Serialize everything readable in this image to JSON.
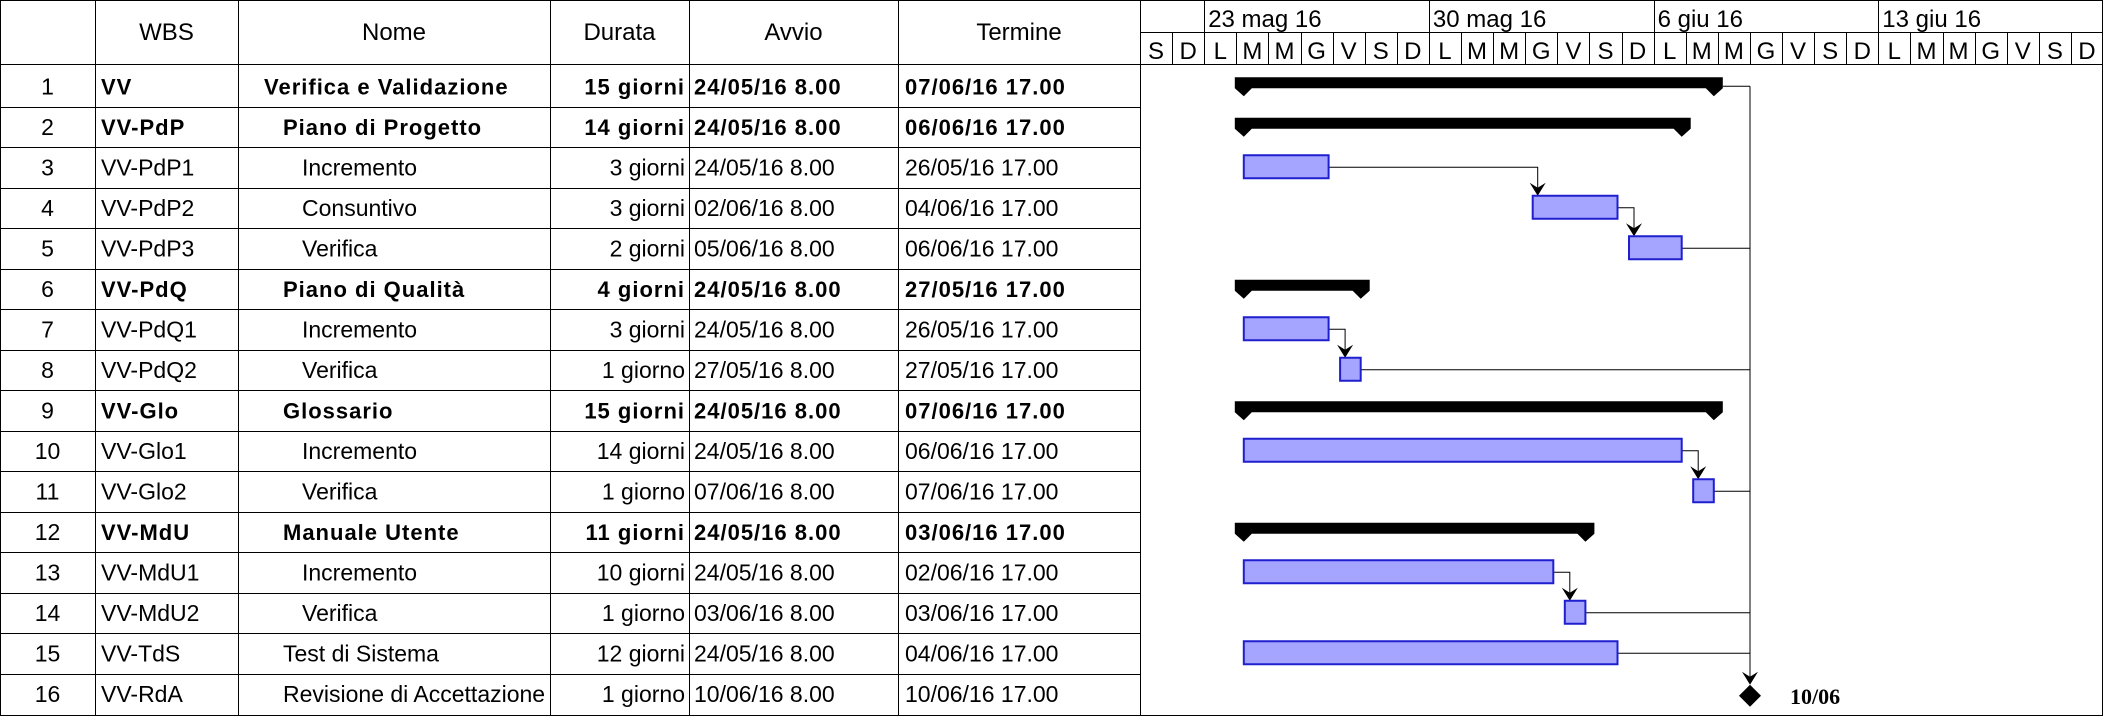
{
  "headers": {
    "wbs": "WBS",
    "name": "Nome",
    "duration": "Durata",
    "start": "Avvio",
    "end": "Termine"
  },
  "timescale": {
    "weeks": [
      "23 mag 16",
      "30 mag 16",
      "6 giu 16",
      "13 giu 16"
    ],
    "days": [
      "S",
      "D",
      "L",
      "M",
      "M",
      "G",
      "V",
      "S",
      "D",
      "L",
      "M",
      "M",
      "G",
      "V",
      "S",
      "D",
      "L",
      "M",
      "M",
      "G",
      "V",
      "S",
      "D",
      "L",
      "M",
      "M",
      "G",
      "V",
      "S",
      "D"
    ]
  },
  "rows": [
    {
      "id": "1",
      "wbs": "VV",
      "name": "Verifica e Validazione",
      "duration": "15 giorni",
      "start": "24/05/16 8.00",
      "end": "07/06/16 17.00",
      "summary": true,
      "level": 0
    },
    {
      "id": "2",
      "wbs": "VV-PdP",
      "name": "Piano di Progetto",
      "duration": "14 giorni",
      "start": "24/05/16 8.00",
      "end": "06/06/16 17.00",
      "summary": true,
      "level": 1
    },
    {
      "id": "3",
      "wbs": "VV-PdP1",
      "name": "Incremento",
      "duration": "3 giorni",
      "start": "24/05/16 8.00",
      "end": "26/05/16 17.00",
      "summary": false,
      "level": 2
    },
    {
      "id": "4",
      "wbs": "VV-PdP2",
      "name": "Consuntivo",
      "duration": "3 giorni",
      "start": "02/06/16 8.00",
      "end": "04/06/16 17.00",
      "summary": false,
      "level": 2
    },
    {
      "id": "5",
      "wbs": "VV-PdP3",
      "name": "Verifica",
      "duration": "2 giorni",
      "start": "05/06/16 8.00",
      "end": "06/06/16 17.00",
      "summary": false,
      "level": 2
    },
    {
      "id": "6",
      "wbs": "VV-PdQ",
      "name": "Piano di Qualità",
      "duration": "4 giorni",
      "start": "24/05/16 8.00",
      "end": "27/05/16 17.00",
      "summary": true,
      "level": 1
    },
    {
      "id": "7",
      "wbs": "VV-PdQ1",
      "name": "Incremento",
      "duration": "3 giorni",
      "start": "24/05/16 8.00",
      "end": "26/05/16 17.00",
      "summary": false,
      "level": 2
    },
    {
      "id": "8",
      "wbs": "VV-PdQ2",
      "name": "Verifica",
      "duration": "1 giorno",
      "start": "27/05/16 8.00",
      "end": "27/05/16 17.00",
      "summary": false,
      "level": 2
    },
    {
      "id": "9",
      "wbs": "VV-Glo",
      "name": "Glossario",
      "duration": "15 giorni",
      "start": "24/05/16 8.00",
      "end": "07/06/16 17.00",
      "summary": true,
      "level": 1
    },
    {
      "id": "10",
      "wbs": "VV-Glo1",
      "name": "Incremento",
      "duration": "14 giorni",
      "start": "24/05/16 8.00",
      "end": "06/06/16 17.00",
      "summary": false,
      "level": 2
    },
    {
      "id": "11",
      "wbs": "VV-Glo2",
      "name": "Verifica",
      "duration": "1 giorno",
      "start": "07/06/16 8.00",
      "end": "07/06/16 17.00",
      "summary": false,
      "level": 2
    },
    {
      "id": "12",
      "wbs": "VV-MdU",
      "name": "Manuale Utente",
      "duration": "11 giorni",
      "start": "24/05/16 8.00",
      "end": "03/06/16 17.00",
      "summary": true,
      "level": 1
    },
    {
      "id": "13",
      "wbs": "VV-MdU1",
      "name": "Incremento",
      "duration": "10 giorni",
      "start": "24/05/16 8.00",
      "end": "02/06/16 17.00",
      "summary": false,
      "level": 2
    },
    {
      "id": "14",
      "wbs": "VV-MdU2",
      "name": "Verifica",
      "duration": "1 giorno",
      "start": "03/06/16 8.00",
      "end": "03/06/16 17.00",
      "summary": false,
      "level": 2
    },
    {
      "id": "15",
      "wbs": "VV-TdS",
      "name": "Test di Sistema",
      "duration": "12 giorni",
      "start": "24/05/16 8.00",
      "end": "04/06/16 17.00",
      "summary": false,
      "level": 1
    },
    {
      "id": "16",
      "wbs": "VV-RdA",
      "name": "Revisione di Accettazione",
      "duration": "1 giorno",
      "start": "10/06/16 8.00",
      "end": "10/06/16 17.00",
      "summary": false,
      "level": 1,
      "milestone": true,
      "milestone_label": "10/06"
    }
  ],
  "chart_data": {
    "type": "gantt",
    "timeline_start": "2016-05-21",
    "timeline_days": 30,
    "tasks": [
      {
        "row": 1,
        "kind": "summary",
        "start": "2016-05-24",
        "end": "2016-06-07"
      },
      {
        "row": 2,
        "kind": "summary",
        "start": "2016-05-24",
        "end": "2016-06-06"
      },
      {
        "row": 3,
        "kind": "task",
        "start": "2016-05-24",
        "end": "2016-05-26"
      },
      {
        "row": 4,
        "kind": "task",
        "start": "2016-06-02",
        "end": "2016-06-04"
      },
      {
        "row": 5,
        "kind": "task",
        "start": "2016-06-05",
        "end": "2016-06-06"
      },
      {
        "row": 6,
        "kind": "summary",
        "start": "2016-05-24",
        "end": "2016-05-27"
      },
      {
        "row": 7,
        "kind": "task",
        "start": "2016-05-24",
        "end": "2016-05-26"
      },
      {
        "row": 8,
        "kind": "task",
        "start": "2016-05-27",
        "end": "2016-05-27"
      },
      {
        "row": 9,
        "kind": "summary",
        "start": "2016-05-24",
        "end": "2016-06-07"
      },
      {
        "row": 10,
        "kind": "task",
        "start": "2016-05-24",
        "end": "2016-06-06"
      },
      {
        "row": 11,
        "kind": "task",
        "start": "2016-06-07",
        "end": "2016-06-07"
      },
      {
        "row": 12,
        "kind": "summary",
        "start": "2016-05-24",
        "end": "2016-06-03"
      },
      {
        "row": 13,
        "kind": "task",
        "start": "2016-05-24",
        "end": "2016-06-02"
      },
      {
        "row": 14,
        "kind": "task",
        "start": "2016-06-03",
        "end": "2016-06-03"
      },
      {
        "row": 15,
        "kind": "task",
        "start": "2016-05-24",
        "end": "2016-06-04"
      },
      {
        "row": 16,
        "kind": "milestone",
        "start": "2016-06-10",
        "end": "2016-06-10"
      }
    ],
    "links": [
      {
        "from": 3,
        "to": 4
      },
      {
        "from": 4,
        "to": 5
      },
      {
        "from": 7,
        "to": 8
      },
      {
        "from": 10,
        "to": 11
      },
      {
        "from": 13,
        "to": 14
      },
      {
        "from": 1,
        "to": 16
      },
      {
        "from": 5,
        "to": 16
      },
      {
        "from": 8,
        "to": 16
      },
      {
        "from": 11,
        "to": 16
      },
      {
        "from": 14,
        "to": 16
      },
      {
        "from": 15,
        "to": 16
      }
    ]
  },
  "colors": {
    "task_fill": "#a5a5ff",
    "task_stroke": "#1f1fcf",
    "summary": "#000000",
    "grid": "#000000"
  }
}
